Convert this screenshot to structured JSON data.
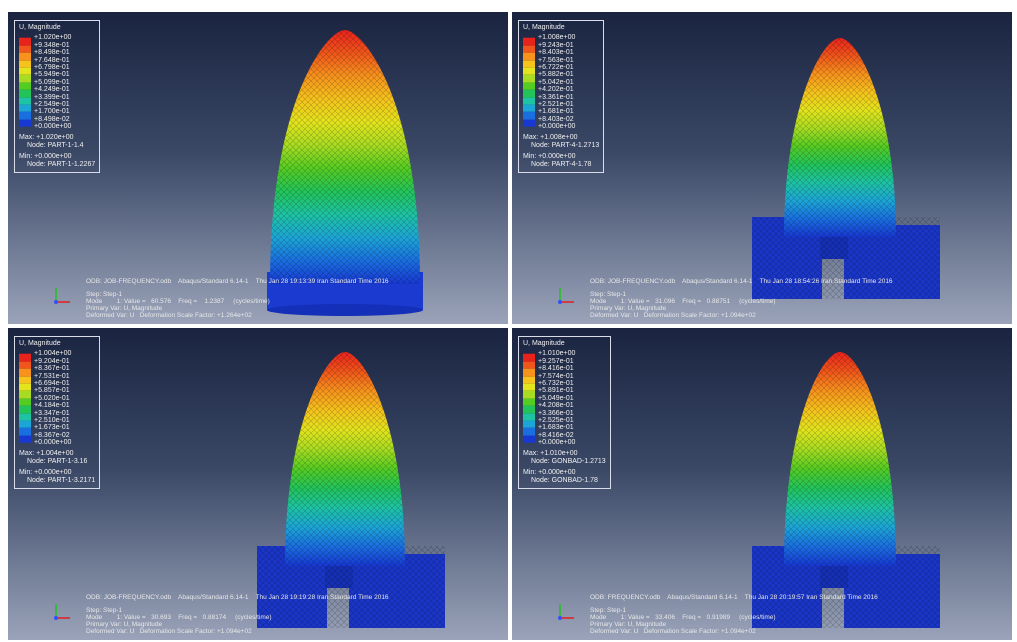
{
  "panels": [
    {
      "legend": {
        "title": "U, Magnitude",
        "labels": [
          "+1.020e+00",
          "+9.348e-01",
          "+8.498e-01",
          "+7.648e-01",
          "+6.798e-01",
          "+5.949e-01",
          "+5.099e-01",
          "+4.249e-01",
          "+3.399e-01",
          "+2.549e-01",
          "+1.700e-01",
          "+8.498e-02",
          "+0.000e+00"
        ],
        "max": "Max: +1.020e+00",
        "max_node": "Node: PART-1-1.4",
        "min": "Min: +0.000e+00",
        "min_node": "Node: PART-1-1.2267"
      },
      "odb": "ODB: JOB-FREQUENCY.odb    Abaqus/Standard 6.14-1    Thu Jan 28 19:13:39 Iran Standard Time 2016",
      "step": "Step: Step-1",
      "mode": "Mode        1: Value =   60.576    Freq =    1.2387     (cycles/time)",
      "primary": "Primary Var: U, Magnitude",
      "deformed": "Deformed Var: U   Deformation Scale Factor: +1.264e+02"
    },
    {
      "legend": {
        "title": "U, Magnitude",
        "labels": [
          "+1.008e+00",
          "+9.243e-01",
          "+8.403e-01",
          "+7.563e-01",
          "+6.722e-01",
          "+5.882e-01",
          "+5.042e-01",
          "+4.202e-01",
          "+3.361e-01",
          "+2.521e-01",
          "+1.681e-01",
          "+8.403e-02",
          "+0.000e+00"
        ],
        "max": "Max: +1.008e+00",
        "max_node": "Node: PART-4-1.2713",
        "min": "Min: +0.000e+00",
        "min_node": "Node: PART-4-1.78"
      },
      "odb": "ODB: JOB-FREQUENCY.odb    Abaqus/Standard 6.14-1    Thu Jan 28 18:54:26 Iran Standard Time 2016",
      "step": "Step: Step-1",
      "mode": "Mode        1: Value =   31.096    Freq =   0.88751     (cycles/time)",
      "primary": "Primary Var: U, Magnitude",
      "deformed": "Deformed Var: U   Deformation Scale Factor: +1.094e+02"
    },
    {
      "legend": {
        "title": "U, Magnitude",
        "labels": [
          "+1.004e+00",
          "+9.204e-01",
          "+8.367e-01",
          "+7.531e-01",
          "+6.694e-01",
          "+5.857e-01",
          "+5.020e-01",
          "+4.184e-01",
          "+3.347e-01",
          "+2.510e-01",
          "+1.673e-01",
          "+8.367e-02",
          "+0.000e+00"
        ],
        "max": "Max: +1.004e+00",
        "max_node": "Node: PART-1-3.16",
        "min": "Min: +0.000e+00",
        "min_node": "Node: PART-1-3.2171"
      },
      "odb": "ODB: JOB-FREQUENCY.odb    Abaqus/Standard 6.14-1    Thu Jan 28 19:19:28 Iran Standard Time 2016",
      "step": "Step: Step-1",
      "mode": "Mode        1: Value =   30.693    Freq =   0.88174     (cycles/time)",
      "primary": "Primary Var: U, Magnitude",
      "deformed": "Deformed Var: U   Deformation Scale Factor: +1.094e+02"
    },
    {
      "legend": {
        "title": "U, Magnitude",
        "labels": [
          "+1.010e+00",
          "+9.257e-01",
          "+8.416e-01",
          "+7.574e-01",
          "+6.732e-01",
          "+5.891e-01",
          "+5.049e-01",
          "+4.208e-01",
          "+3.366e-01",
          "+2.525e-01",
          "+1.683e-01",
          "+8.416e-02",
          "+0.000e+00"
        ],
        "max": "Max: +1.010e+00",
        "max_node": "Node: GONBAD-1.2713",
        "min": "Min: +0.000e+00",
        "min_node": "Node: GONBAD-1.78"
      },
      "odb": "ODB: FREQUENCY.odb    Abaqus/Standard 6.14-1    Thu Jan 28 20:19:57 Iran Standard Time 2016",
      "step": "Step: Step-1",
      "mode": "Mode        1: Value =   33.406    Freq =   0.91989     (cycles/time)",
      "primary": "Primary Var: U, Magnitude",
      "deformed": "Deformed Var: U   Deformation Scale Factor: +1.094e+02"
    }
  ]
}
